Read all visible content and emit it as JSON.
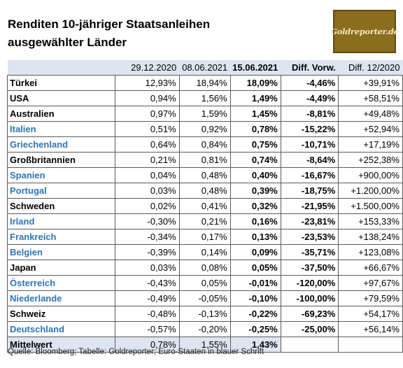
{
  "title_line1": "Renditen 10-jähriger Staatsanleihen",
  "title_line2": "ausgewählter Länder",
  "logo_text": "Goldreporter.de",
  "columns": [
    "",
    "29.12.2020",
    "08.06.2021",
    "15.06.2021",
    "Diff. Vorw.",
    "Diff. 12/2020"
  ],
  "rows": [
    {
      "land": "Türkei",
      "euro": false,
      "v1": "12,93%",
      "v2": "18,94%",
      "v3": "18,09%",
      "d1": "-4,46%",
      "d2": "+39,91%"
    },
    {
      "land": "USA",
      "euro": false,
      "v1": "0,94%",
      "v2": "1,56%",
      "v3": "1,49%",
      "d1": "-4,49%",
      "d2": "+58,51%"
    },
    {
      "land": "Australien",
      "euro": false,
      "v1": "0,97%",
      "v2": "1,59%",
      "v3": "1,45%",
      "d1": "-8,81%",
      "d2": "+49,48%"
    },
    {
      "land": "Italien",
      "euro": true,
      "v1": "0,51%",
      "v2": "0,92%",
      "v3": "0,78%",
      "d1": "-15,22%",
      "d2": "+52,94%"
    },
    {
      "land": "Griechenland",
      "euro": true,
      "v1": "0,64%",
      "v2": "0,84%",
      "v3": "0,75%",
      "d1": "-10,71%",
      "d2": "+17,19%"
    },
    {
      "land": "Großbritannien",
      "euro": false,
      "v1": "0,21%",
      "v2": "0,81%",
      "v3": "0,74%",
      "d1": "-8,64%",
      "d2": "+252,38%"
    },
    {
      "land": "Spanien",
      "euro": true,
      "v1": "0,04%",
      "v2": "0,48%",
      "v3": "0,40%",
      "d1": "-16,67%",
      "d2": "+900,00%"
    },
    {
      "land": "Portugal",
      "euro": true,
      "v1": "0,03%",
      "v2": "0,48%",
      "v3": "0,39%",
      "d1": "-18,75%",
      "d2": "+1.200,00%"
    },
    {
      "land": "Schweden",
      "euro": false,
      "v1": "0,02%",
      "v2": "0,41%",
      "v3": "0,32%",
      "d1": "-21,95%",
      "d2": "+1.500,00%"
    },
    {
      "land": "Irland",
      "euro": true,
      "v1": "-0,30%",
      "v2": "0,21%",
      "v3": "0,16%",
      "d1": "-23,81%",
      "d2": "+153,33%"
    },
    {
      "land": "Frankreich",
      "euro": true,
      "v1": "-0,34%",
      "v2": "0,17%",
      "v3": "0,13%",
      "d1": "-23,53%",
      "d2": "+138,24%"
    },
    {
      "land": "Belgien",
      "euro": true,
      "v1": "-0,39%",
      "v2": "0,14%",
      "v3": "0,09%",
      "d1": "-35,71%",
      "d2": "+123,08%"
    },
    {
      "land": "Japan",
      "euro": false,
      "v1": "0,03%",
      "v2": "0,08%",
      "v3": "0,05%",
      "d1": "-37,50%",
      "d2": "+66,67%"
    },
    {
      "land": "Österreich",
      "euro": true,
      "v1": "-0,43%",
      "v2": "0,05%",
      "v3": "-0,01%",
      "d1": "-120,00%",
      "d2": "+97,67%"
    },
    {
      "land": "Niederlande",
      "euro": true,
      "v1": "-0,49%",
      "v2": "-0,05%",
      "v3": "-0,10%",
      "d1": "-100,00%",
      "d2": "+79,59%"
    },
    {
      "land": "Schweiz",
      "euro": false,
      "v1": "-0,48%",
      "v2": "-0,13%",
      "v3": "-0,22%",
      "d1": "-69,23%",
      "d2": "+54,17%"
    },
    {
      "land": "Deutschland",
      "euro": true,
      "v1": "-0,57%",
      "v2": "-0,20%",
      "v3": "-0,25%",
      "d1": "-25,00%",
      "d2": "+56,14%"
    }
  ],
  "footer": {
    "label": "Mittelwert",
    "v1": "0,78%",
    "v2": "1,55%",
    "v3": "1,43%",
    "d1": "",
    "d2": ""
  },
  "source": "Quelle: Bloomberg; Tabelle: Goldreporter; Euro-Staaten in blauer Schrift",
  "colors": {
    "euro_text": "#2e75b6",
    "header_bg": "#dde5f1",
    "logo_bg": "#8a6d1d"
  }
}
